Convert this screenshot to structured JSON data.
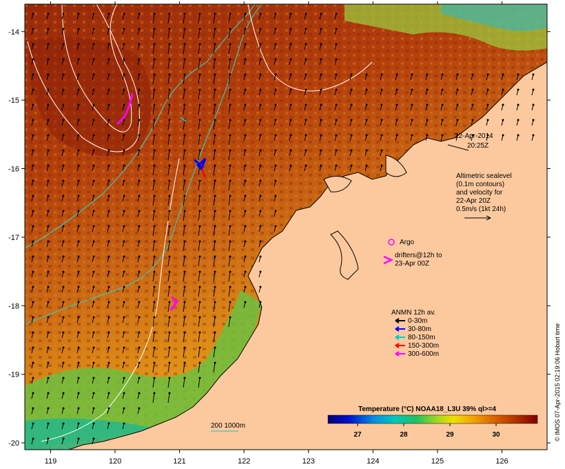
{
  "map": {
    "lon_ticks": [
      "119",
      "120",
      "121",
      "122",
      "123",
      "124",
      "125",
      "126"
    ],
    "lat_ticks": [
      "-14",
      "-15",
      "-16",
      "-17",
      "-18",
      "-19",
      "-20"
    ],
    "lon_range": [
      118.6,
      126.7
    ],
    "lat_range": [
      -13.6,
      -20.1
    ]
  },
  "timestamp": {
    "date": "22-Apr-2014",
    "time": "20:25Z"
  },
  "altimetry": {
    "line1": "Altimetric sealevel",
    "line2": "(0.1m contours)",
    "line3": "and velocity for",
    "line4": "22-Apr 20Z",
    "line5": "0.5m/s (1kt 24h)"
  },
  "argo": {
    "label": "Argo"
  },
  "drifters": {
    "line1": "drifters@12h to",
    "line2": "23-Apr 00Z"
  },
  "anmn": {
    "title": "ANMN 12h av.",
    "items": [
      {
        "label": "0-30m",
        "color": "#000000"
      },
      {
        "label": "30-80m",
        "color": "#0000ff"
      },
      {
        "label": "80-150m",
        "color": "#00cccc"
      },
      {
        "label": "150-300m",
        "color": "#ff0000"
      },
      {
        "label": "300-600m",
        "color": "#ff00ff"
      }
    ]
  },
  "colorbar": {
    "title": "Temperature (°C) NOAA18_L3U 39% ql>=4",
    "ticks": [
      "27",
      "28",
      "29",
      "30"
    ]
  },
  "depth_legend": {
    "label": "200 1000m"
  },
  "credit": "© IMOS 07-Apr-2015 02:19:06 Hobart time",
  "colors": {
    "land": "#fcc99e",
    "sst_warm": "#a02a08",
    "sst_mid": "#d06a12",
    "contour_200": "#3cc8b4",
    "sealevel_contour": "#ffffff"
  }
}
